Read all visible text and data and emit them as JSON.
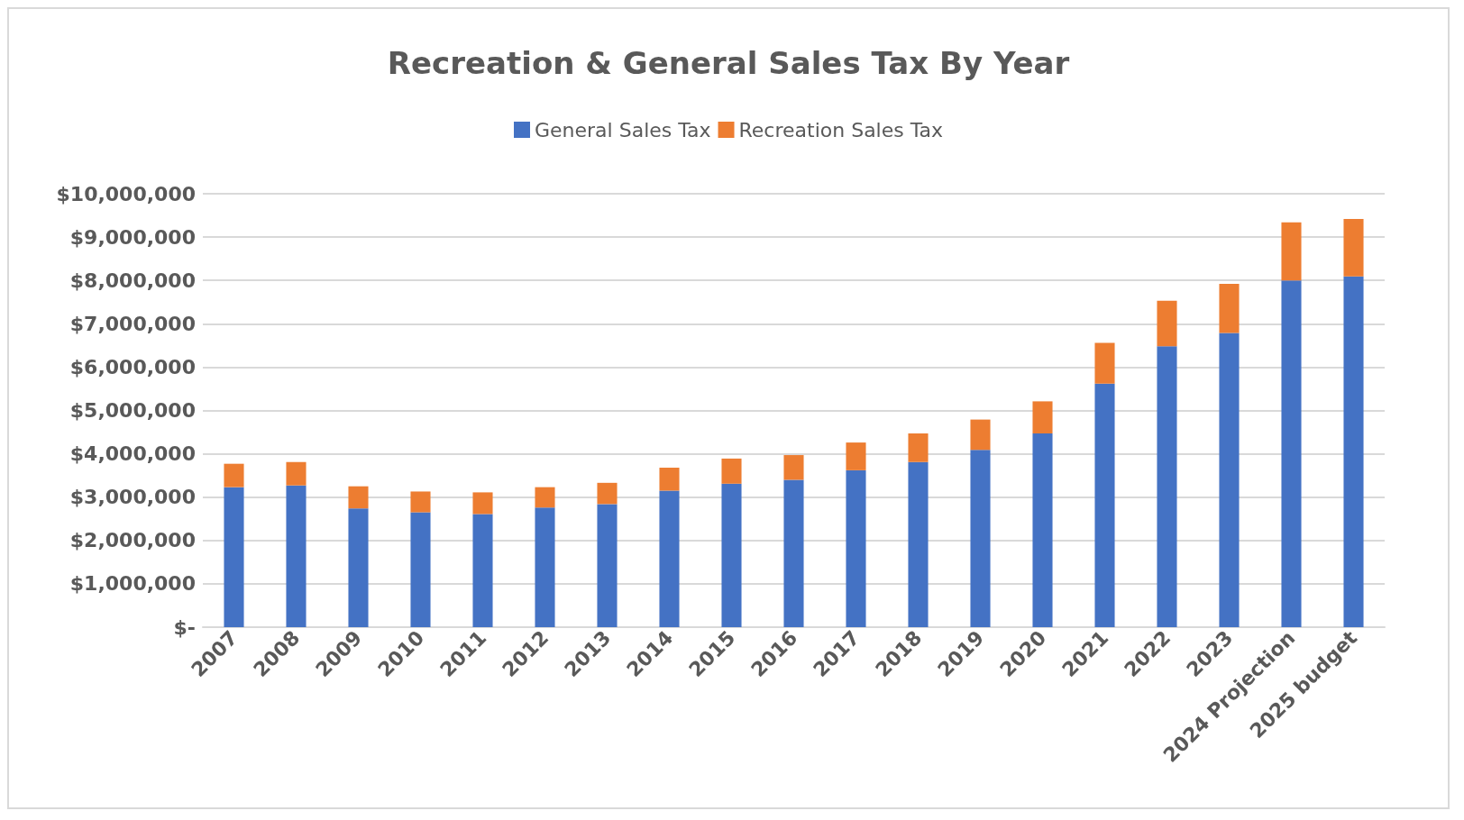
{
  "chart_data": {
    "type": "bar",
    "title": "Recreation & General Sales Tax By Year",
    "stacked": true,
    "categories": [
      "2007",
      "2008",
      "2009",
      "2010",
      "2011",
      "2012",
      "2013",
      "2014",
      "2015",
      "2016",
      "2017",
      "2018",
      "2019",
      "2020",
      "2021",
      "2022",
      "2023",
      "2024 Projection",
      "2025 budget"
    ],
    "series": [
      {
        "name": "General Sales Tax",
        "color": "#4472c4",
        "values": [
          3230000,
          3270000,
          2740000,
          2650000,
          2610000,
          2760000,
          2840000,
          3150000,
          3310000,
          3400000,
          3620000,
          3810000,
          4090000,
          4470000,
          5620000,
          6480000,
          6790000,
          8000000,
          8090000
        ]
      },
      {
        "name": "Recreation Sales Tax",
        "color": "#ed7d31",
        "values": [
          540000,
          540000,
          510000,
          480000,
          500000,
          470000,
          490000,
          530000,
          580000,
          570000,
          640000,
          660000,
          700000,
          740000,
          940000,
          1050000,
          1130000,
          1340000,
          1330000
        ]
      }
    ],
    "ylim": [
      0,
      10000000
    ],
    "yticks": [
      {
        "value": 0,
        "label": "$-"
      },
      {
        "value": 1000000,
        "label": "$1,000,000"
      },
      {
        "value": 2000000,
        "label": "$2,000,000"
      },
      {
        "value": 3000000,
        "label": "$3,000,000"
      },
      {
        "value": 4000000,
        "label": "$4,000,000"
      },
      {
        "value": 5000000,
        "label": "$5,000,000"
      },
      {
        "value": 6000000,
        "label": "$6,000,000"
      },
      {
        "value": 7000000,
        "label": "$7,000,000"
      },
      {
        "value": 8000000,
        "label": "$8,000,000"
      },
      {
        "value": 9000000,
        "label": "$9,000,000"
      },
      {
        "value": 10000000,
        "label": "$10,000,000"
      }
    ],
    "grid": true,
    "legend": "top"
  }
}
